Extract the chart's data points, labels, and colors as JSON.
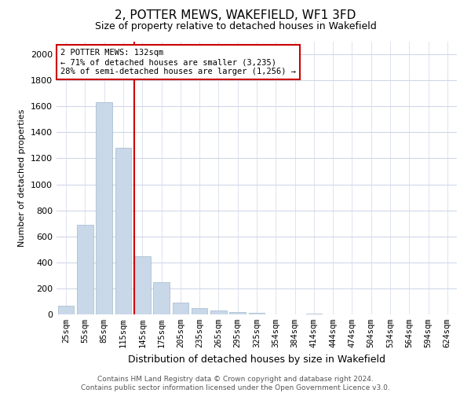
{
  "title": "2, POTTER MEWS, WAKEFIELD, WF1 3FD",
  "subtitle": "Size of property relative to detached houses in Wakefield",
  "xlabel": "Distribution of detached houses by size in Wakefield",
  "ylabel": "Number of detached properties",
  "bar_color": "#c8d8e8",
  "bar_edge_color": "#a0b8cc",
  "categories": [
    "25sqm",
    "55sqm",
    "85sqm",
    "115sqm",
    "145sqm",
    "175sqm",
    "205sqm",
    "235sqm",
    "265sqm",
    "295sqm",
    "325sqm",
    "354sqm",
    "384sqm",
    "414sqm",
    "444sqm",
    "474sqm",
    "504sqm",
    "534sqm",
    "564sqm",
    "594sqm",
    "624sqm"
  ],
  "values": [
    65,
    690,
    1630,
    1280,
    450,
    250,
    90,
    50,
    30,
    18,
    10,
    0,
    0,
    8,
    0,
    0,
    0,
    0,
    0,
    0,
    0
  ],
  "ylim": [
    0,
    2100
  ],
  "yticks": [
    0,
    200,
    400,
    600,
    800,
    1000,
    1200,
    1400,
    1600,
    1800,
    2000
  ],
  "vline_x": 3.57,
  "annotation_text": "2 POTTER MEWS: 132sqm\n← 71% of detached houses are smaller (3,235)\n28% of semi-detached houses are larger (1,256) →",
  "annotation_box_color": "#ffffff",
  "annotation_box_edge_color": "#cc0000",
  "footer_text": "Contains HM Land Registry data © Crown copyright and database right 2024.\nContains public sector information licensed under the Open Government Licence v3.0.",
  "background_color": "#ffffff",
  "grid_color": "#d0d8e8",
  "vline_color": "#cc0000",
  "title_fontsize": 11,
  "subtitle_fontsize": 9,
  "ylabel_fontsize": 8,
  "xlabel_fontsize": 9,
  "tick_fontsize": 8,
  "xtick_fontsize": 7.5,
  "annotation_fontsize": 7.5
}
